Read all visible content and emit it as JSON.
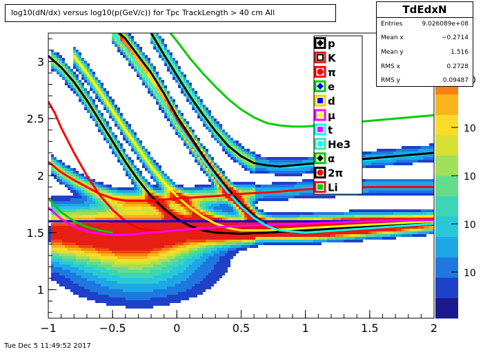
{
  "title": "log10(dN/dx) versus log10(p(GeV/c)) for Tpc TrackLength > 40 cm All",
  "stats": {
    "name": "TdEdxN",
    "rows": [
      {
        "key": "Entries",
        "value": "9.026089e+08"
      },
      {
        "key": "Mean x",
        "value": "−0.2714"
      },
      {
        "key": "Mean y",
        "value": "1.516"
      },
      {
        "key": "RMS x",
        "value": "0.2728"
      },
      {
        "key": "RMS y",
        "value": "0.09487"
      }
    ]
  },
  "footer": "Tue Dec  5 11:49:52 2017",
  "chart_data": {
    "type": "heatmap",
    "title": "log10(dN/dx) versus log10(p(GeV/c)) for Tpc TrackLength > 40 cm All",
    "xlim": [
      -1,
      2
    ],
    "ylim": [
      0.75,
      3.25
    ],
    "x_ticks": [
      -1,
      -0.5,
      0,
      0.5,
      1,
      1.5,
      2
    ],
    "x_tick_labels": [
      "−1",
      "−0.5",
      "0",
      "0.5",
      "1",
      "1.5",
      "2"
    ],
    "y_ticks": [
      1,
      1.5,
      2,
      2.5,
      3
    ],
    "y_tick_labels": [
      "1",
      "1.5",
      "2",
      "2.5",
      "3"
    ],
    "z_scale": "log",
    "z_tick_labels": [
      "10",
      "10",
      "10",
      "10",
      "10"
    ],
    "palette": [
      "#1a1a8c",
      "#1f40c8",
      "#1e78e0",
      "#1ea6e6",
      "#28c8d8",
      "#3cd6b4",
      "#64dc8c",
      "#a0e05a",
      "#d8e034",
      "#fadc28",
      "#fab41e",
      "#f68214",
      "#f04614",
      "#e61e14"
    ],
    "band_centers": [
      -0.95,
      -0.2
    ],
    "legend": [
      {
        "label": "p",
        "color": "#000000",
        "marker": "diamond"
      },
      {
        "label": "K",
        "color": "#000000",
        "marker": "square-open",
        "box_color": "#e41a1c"
      },
      {
        "label": "π",
        "color": "#ff0000",
        "marker": "circle"
      },
      {
        "label": "e",
        "color": "#0000ff",
        "marker": "diamond",
        "box_color": "#00cc00"
      },
      {
        "label": "d",
        "color": "#0000ff",
        "marker": "square",
        "box_color": "#ffcc00"
      },
      {
        "label": "μ",
        "color": "#ffff00",
        "marker": "diamond",
        "box_color": "#ff00ff"
      },
      {
        "label": "t",
        "color": "#ff00ff",
        "marker": "square",
        "box_color": "#00ffff"
      },
      {
        "label": "He3",
        "color": "#00ffff",
        "marker": "circle",
        "box_color": "#44ddaa"
      },
      {
        "label": "α",
        "color": "#000000",
        "marker": "diamond",
        "box_color": "#00cc00"
      },
      {
        "label": "2π",
        "color": "#ff0000",
        "marker": "circle",
        "box_color": "#000000"
      },
      {
        "label": "Li",
        "color": "#00cc00",
        "marker": "square",
        "box_color": "#e41a1c"
      }
    ],
    "series": [
      {
        "name": "p",
        "color": "#000000",
        "x": [
          -0.45,
          -0.4,
          -0.3,
          -0.2,
          -0.1,
          0,
          0.1,
          0.2,
          0.3,
          0.4,
          0.5,
          0.6,
          0.7,
          0.8,
          1,
          1.2,
          1.5,
          1.8,
          2
        ],
        "y": [
          3.25,
          3.2,
          3.05,
          2.9,
          2.72,
          2.52,
          2.35,
          2.18,
          2.02,
          1.88,
          1.75,
          1.65,
          1.57,
          1.52,
          1.5,
          1.52,
          1.55,
          1.58,
          1.6
        ]
      },
      {
        "name": "K",
        "color": "#000000",
        "x": [
          -1,
          -0.9,
          -0.8,
          -0.7,
          -0.6,
          -0.5,
          -0.4,
          -0.3,
          -0.2,
          -0.1,
          0,
          0.1,
          0.2,
          0.3,
          0.5,
          0.7,
          1,
          1.5,
          2
        ],
        "y": [
          3.05,
          2.95,
          2.82,
          2.66,
          2.48,
          2.3,
          2.12,
          1.96,
          1.82,
          1.71,
          1.62,
          1.56,
          1.52,
          1.5,
          1.49,
          1.5,
          1.52,
          1.56,
          1.6
        ]
      },
      {
        "name": "π",
        "color": "#ff0000",
        "x": [
          -1,
          -0.95,
          -0.9,
          -0.8,
          -0.7,
          -0.6,
          -0.5,
          -0.4,
          -0.3,
          -0.2,
          -0.1,
          0,
          0.2,
          0.5,
          0.8,
          1,
          1.5,
          2
        ],
        "y": [
          2.65,
          2.55,
          2.42,
          2.2,
          2.0,
          1.83,
          1.7,
          1.6,
          1.54,
          1.52,
          1.51,
          1.52,
          1.53,
          1.55,
          1.56,
          1.57,
          1.59,
          1.6
        ]
      },
      {
        "name": "e",
        "color": "#0000ff",
        "x": [
          -1,
          -0.5,
          0,
          0.5,
          1,
          1.5,
          2
        ],
        "y": [
          1.6,
          1.6,
          1.6,
          1.6,
          1.6,
          1.6,
          1.6
        ]
      },
      {
        "name": "d",
        "color": "#ffff00",
        "x": [
          -0.8,
          -0.7,
          -0.6,
          -0.5,
          -0.4,
          -0.3,
          -0.2,
          -0.1,
          0,
          0.1,
          0.2,
          0.3,
          0.4,
          0.5,
          0.7,
          1,
          1.5,
          2
        ],
        "y": [
          3.05,
          2.9,
          2.74,
          2.57,
          2.4,
          2.24,
          2.08,
          1.94,
          1.82,
          1.72,
          1.64,
          1.58,
          1.54,
          1.52,
          1.52,
          1.54,
          1.57,
          1.6
        ]
      },
      {
        "name": "μ",
        "color": "#ff00ff",
        "x": [
          -1,
          -0.9,
          -0.8,
          -0.7,
          -0.6,
          -0.5,
          -0.4,
          -0.3,
          -0.2,
          0,
          0.2,
          0.5,
          1,
          1.5,
          2
        ],
        "y": [
          1.72,
          1.62,
          1.55,
          1.51,
          1.49,
          1.48,
          1.48,
          1.49,
          1.5,
          1.52,
          1.54,
          1.56,
          1.58,
          1.6,
          1.61
        ]
      },
      {
        "name": "t",
        "color": "#00ffff",
        "x": [
          -0.5,
          -0.4,
          -0.3,
          -0.2,
          -0.1,
          0,
          0.1,
          0.2,
          0.3,
          0.4,
          0.5,
          0.6,
          0.7,
          0.8,
          1,
          1.5,
          2
        ],
        "y": [
          3.25,
          3.12,
          2.96,
          2.8,
          2.63,
          2.46,
          2.3,
          2.14,
          1.99,
          1.85,
          1.73,
          1.63,
          1.56,
          1.52,
          1.5,
          1.54,
          1.58
        ]
      },
      {
        "name": "He3",
        "color": "#00ffff",
        "x": [
          -0.2,
          -0.1,
          0,
          0.1,
          0.2,
          0.3,
          0.4,
          0.5,
          0.6,
          0.7,
          0.8,
          0.9,
          1,
          1.2,
          1.5,
          2
        ],
        "y": [
          3.25,
          3.08,
          2.9,
          2.72,
          2.55,
          2.4,
          2.27,
          2.17,
          2.11,
          2.09,
          2.08,
          2.08,
          2.09,
          2.11,
          2.14,
          2.2
        ]
      },
      {
        "name": "α",
        "color": "#000000",
        "x": [
          -0.2,
          -0.1,
          0,
          0.1,
          0.2,
          0.3,
          0.4,
          0.5,
          0.6,
          0.7,
          0.8,
          0.9,
          1,
          1.2,
          1.5,
          2
        ],
        "y": [
          3.25,
          3.06,
          2.88,
          2.7,
          2.54,
          2.39,
          2.26,
          2.17,
          2.11,
          2.09,
          2.08,
          2.09,
          2.1,
          2.12,
          2.15,
          2.2
        ]
      },
      {
        "name": "2π",
        "color": "#ff0000",
        "x": [
          -1,
          -0.9,
          -0.8,
          -0.7,
          -0.6,
          -0.5,
          -0.4,
          -0.3,
          -0.2,
          0,
          0.3,
          0.5,
          0.8,
          1,
          1.5,
          2
        ],
        "y": [
          2.12,
          2.03,
          1.96,
          1.9,
          1.84,
          1.8,
          1.78,
          1.78,
          1.78,
          1.8,
          1.82,
          1.84,
          1.86,
          1.88,
          1.9,
          1.9
        ]
      },
      {
        "name": "Li",
        "color": "#00cc00",
        "x": [
          -0.05,
          0,
          0.1,
          0.2,
          0.3,
          0.4,
          0.5,
          0.6,
          0.7,
          0.8,
          0.9,
          1,
          1.2,
          1.5,
          2
        ],
        "y": [
          3.25,
          3.18,
          3.03,
          2.9,
          2.78,
          2.67,
          2.58,
          2.51,
          2.46,
          2.44,
          2.43,
          2.43,
          2.45,
          2.48,
          2.53
        ]
      },
      {
        "name": "Li",
        "color": "#00cc00",
        "x": [
          -1,
          -0.9,
          -0.8,
          -0.7,
          -0.6,
          -0.5
        ],
        "y": [
          1.8,
          1.68,
          1.6,
          1.55,
          1.52,
          1.5
        ]
      }
    ]
  }
}
